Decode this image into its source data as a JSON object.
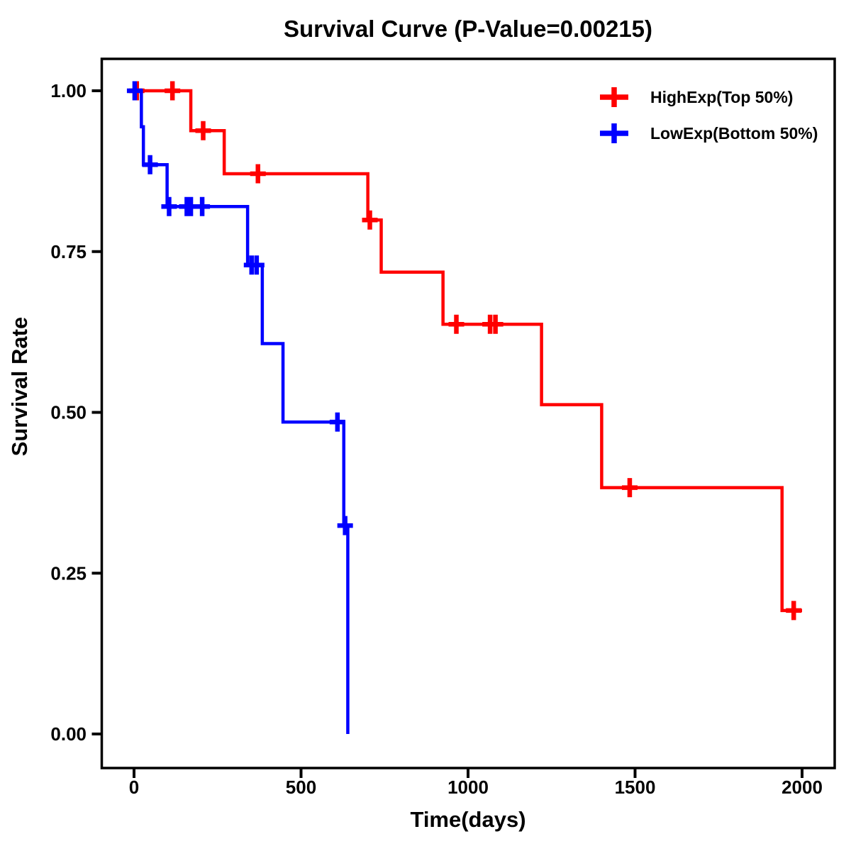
{
  "chart_data": {
    "type": "line",
    "subtype": "kaplan-meier-step-curve",
    "title": "Survival Curve (P-Value=0.00215)",
    "p_value": "0.00215",
    "xlabel": "Time(days)",
    "ylabel": "Survival Rate",
    "x_ticks": [
      0,
      500,
      1000,
      1500,
      2000
    ],
    "x_tick_labels": [
      "0",
      "500",
      "1000",
      "1500",
      "2000"
    ],
    "y_ticks": [
      1.0,
      0.75,
      0.5,
      0.25,
      0.0
    ],
    "y_tick_labels": [
      "1.00",
      "0.75",
      "0.50",
      "0.25",
      "0.00"
    ],
    "xlim": [
      -97,
      2098
    ],
    "ylim": [
      -0.053,
      1.05
    ],
    "grid": false,
    "legend_position": "upper right",
    "background_color": "#ffffff",
    "axis_color": "#000000",
    "series": [
      {
        "name": "HighExp(Top 50%)",
        "color": "#ff0000",
        "steps": [
          [
            0,
            1.0
          ],
          [
            170,
            0.938
          ],
          [
            270,
            0.871
          ],
          [
            700,
            0.799
          ],
          [
            740,
            0.718
          ],
          [
            925,
            0.637
          ],
          [
            1220,
            0.512
          ],
          [
            1400,
            0.383
          ],
          [
            1940,
            0.192
          ]
        ],
        "end_time": 2000,
        "censor_marks": [
          [
            8,
            1.0
          ],
          [
            115,
            1.0
          ],
          [
            207,
            0.938
          ],
          [
            371,
            0.871
          ],
          [
            706,
            0.799
          ],
          [
            965,
            0.637
          ],
          [
            1066,
            0.637
          ],
          [
            1082,
            0.637
          ],
          [
            1484,
            0.383
          ],
          [
            1975,
            0.192
          ]
        ]
      },
      {
        "name": "LowExp(Bottom 50%)",
        "color": "#0000ff",
        "steps": [
          [
            0,
            1.0
          ],
          [
            22,
            0.944
          ],
          [
            28,
            0.885
          ],
          [
            99,
            0.82
          ],
          [
            340,
            0.729
          ],
          [
            384,
            0.607
          ],
          [
            446,
            0.485
          ],
          [
            628,
            0.324
          ],
          [
            640,
            0.0
          ]
        ],
        "end_time": 640,
        "censor_marks": [
          [
            2,
            1.0
          ],
          [
            48,
            0.885
          ],
          [
            105,
            0.82
          ],
          [
            158,
            0.82
          ],
          [
            170,
            0.82
          ],
          [
            204,
            0.82
          ],
          [
            352,
            0.729
          ],
          [
            367,
            0.729
          ],
          [
            609,
            0.485
          ],
          [
            632,
            0.324
          ]
        ]
      }
    ]
  }
}
